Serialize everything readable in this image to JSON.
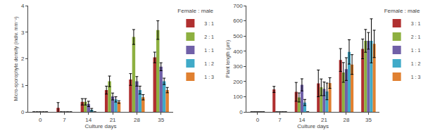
{
  "chart_data": [
    {
      "type": "bar",
      "title": "Female : male",
      "xlabel": "Culture days",
      "ylabel": "Micro-sporophyte density (indiv. mm⁻²)",
      "categories": [
        "0",
        "7",
        "14",
        "21",
        "28",
        "35"
      ],
      "series": [
        {
          "name": "3 : 1",
          "color": "#b03030",
          "values": [
            0,
            0.15,
            0.38,
            0.82,
            1.22,
            2.05
          ],
          "errors": [
            0,
            0.2,
            0.12,
            0.15,
            0.22,
            0.2
          ]
        },
        {
          "name": "2 : 1",
          "color": "#8db040",
          "values": [
            0,
            0,
            0.38,
            1.15,
            2.82,
            3.08
          ],
          "errors": [
            0,
            0,
            0.12,
            0.2,
            0.28,
            0.35
          ]
        },
        {
          "name": "1 : 1",
          "color": "#7060a8",
          "values": [
            0,
            0,
            0.3,
            0.58,
            1.15,
            1.7
          ],
          "errors": [
            0,
            0,
            0.1,
            0.13,
            0.18,
            0.15
          ]
        },
        {
          "name": "1 : 2",
          "color": "#40aac8",
          "values": [
            0,
            0,
            0.08,
            0.47,
            0.82,
            1.15
          ],
          "errors": [
            0,
            0,
            0.05,
            0.1,
            0.15,
            0.12
          ]
        },
        {
          "name": "1 : 3",
          "color": "#e08030",
          "values": [
            0,
            0,
            0,
            0.37,
            0.55,
            0.82
          ],
          "errors": [
            0,
            0,
            0,
            0.05,
            0.1,
            0.1
          ]
        }
      ],
      "ylim": [
        0,
        4
      ],
      "yticks": [
        0,
        1,
        2,
        3,
        4
      ],
      "grid": false,
      "legend": "right"
    },
    {
      "type": "bar",
      "title": "Female : male",
      "xlabel": "Culture days",
      "ylabel": "Plant length (µm)",
      "categories": [
        "0",
        "7",
        "14",
        "21",
        "28",
        "35"
      ],
      "series": [
        {
          "name": "3 : 1",
          "color": "#b03030",
          "values": [
            0,
            148,
            132,
            188,
            342,
            415
          ],
          "errors": [
            0,
            20,
            62,
            88,
            75,
            65
          ]
        },
        {
          "name": "2 : 1",
          "color": "#8db040",
          "values": [
            0,
            0,
            95,
            162,
            260,
            468
          ],
          "errors": [
            0,
            0,
            30,
            55,
            65,
            75
          ]
        },
        {
          "name": "1 : 1",
          "color": "#7060a8",
          "values": [
            0,
            0,
            178,
            152,
            282,
            468
          ],
          "errors": [
            0,
            0,
            40,
            45,
            75,
            55
          ]
        },
        {
          "name": "1 : 2",
          "color": "#40aac8",
          "values": [
            0,
            0,
            62,
            135,
            395,
            468
          ],
          "errors": [
            0,
            0,
            20,
            55,
            80,
            145
          ]
        },
        {
          "name": "1 : 3",
          "color": "#e08030",
          "values": [
            0,
            0,
            0,
            190,
            312,
            448
          ],
          "errors": [
            0,
            0,
            0,
            35,
            65,
            90
          ]
        }
      ],
      "ylim": [
        0,
        700
      ],
      "yticks": [
        0,
        100,
        200,
        300,
        400,
        500,
        600,
        700
      ],
      "grid": false,
      "legend": "right"
    }
  ]
}
